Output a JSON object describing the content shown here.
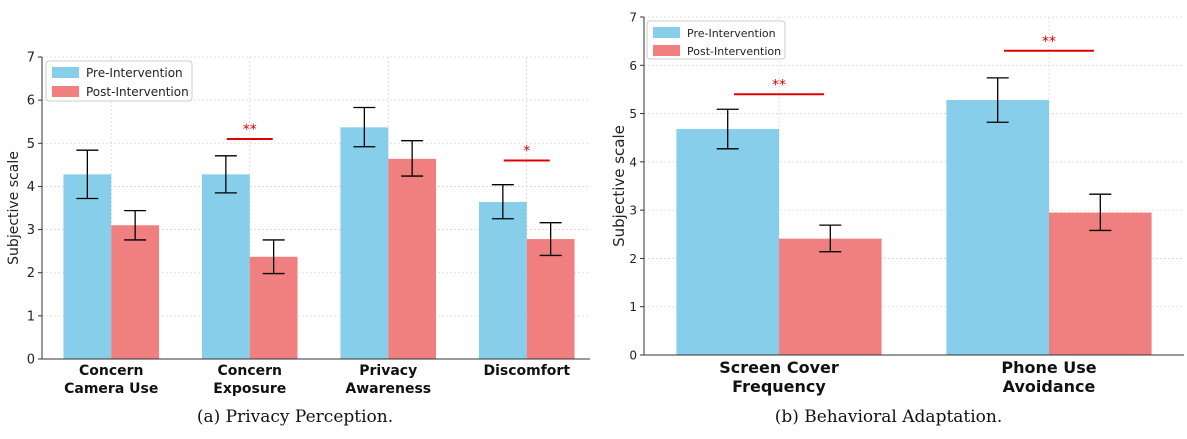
{
  "chart_data": [
    {
      "type": "bar",
      "caption": "(a) Privacy Perception.",
      "categories": [
        [
          "Concern",
          "Camera Use"
        ],
        [
          "Concern",
          "Exposure"
        ],
        [
          "Privacy",
          "Awareness"
        ],
        [
          "Discomfort"
        ]
      ],
      "ylabel": "Subjective scale",
      "ylim": [
        0,
        7
      ],
      "yticks": [
        0,
        1,
        2,
        3,
        4,
        5,
        6,
        7
      ],
      "grid": true,
      "legend_position": "top-left",
      "series": [
        {
          "name": "Pre-Intervention",
          "color": "#87ceeb",
          "values": [
            4.28,
            4.28,
            5.37,
            3.64
          ],
          "err_low": [
            3.72,
            3.85,
            4.92,
            3.25
          ],
          "err_high": [
            4.84,
            4.71,
            5.83,
            4.04
          ]
        },
        {
          "name": "Post-Intervention",
          "color": "#f08080",
          "values": [
            3.1,
            2.37,
            4.64,
            2.78
          ],
          "err_low": [
            2.76,
            1.98,
            4.24,
            2.4
          ],
          "err_high": [
            3.44,
            2.76,
            5.06,
            3.16
          ]
        }
      ],
      "significance": [
        {
          "category_index": 1,
          "label": "**",
          "y": 5.1
        },
        {
          "category_index": 3,
          "label": "*",
          "y": 4.6
        }
      ]
    },
    {
      "type": "bar",
      "caption": "(b) Behavioral Adaptation.",
      "categories": [
        [
          "Screen Cover",
          "Frequency"
        ],
        [
          "Phone Use",
          "Avoidance"
        ]
      ],
      "ylabel": "Subjective scale",
      "ylim": [
        0,
        7
      ],
      "yticks": [
        0,
        1,
        2,
        3,
        4,
        5,
        6,
        7
      ],
      "grid": true,
      "legend_position": "top-left",
      "series": [
        {
          "name": "Pre-Intervention",
          "color": "#87ceeb",
          "values": [
            4.68,
            5.28
          ],
          "err_low": [
            4.27,
            4.82
          ],
          "err_high": [
            5.09,
            5.74
          ]
        },
        {
          "name": "Post-Intervention",
          "color": "#f08080",
          "values": [
            2.41,
            2.95
          ],
          "err_low": [
            2.14,
            2.58
          ],
          "err_high": [
            2.69,
            3.33
          ]
        }
      ],
      "significance": [
        {
          "category_index": 0,
          "label": "**",
          "y": 5.4
        },
        {
          "category_index": 1,
          "label": "**",
          "y": 6.3
        }
      ]
    }
  ]
}
